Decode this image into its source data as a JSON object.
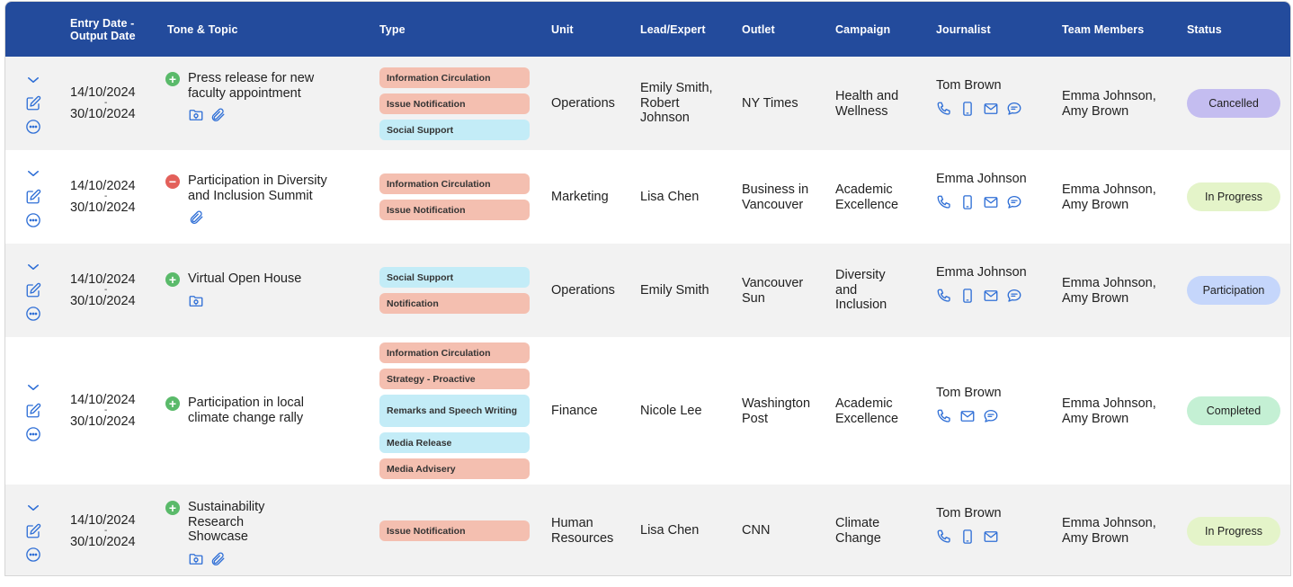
{
  "columns": {
    "entry_date_line1": "Entry Date -",
    "entry_date_line2": "Output Date",
    "tone_topic": "Tone & Topic",
    "type": "Type",
    "unit": "Unit",
    "lead": "Lead/Expert",
    "outlet": "Outlet",
    "campaign": "Campaign",
    "journalist": "Journalist",
    "team": "Team Members",
    "status": "Status"
  },
  "colors": {
    "header_bg": "#234b9c",
    "chip_salmon": "#f4bfb0",
    "chip_cyan": "#c3ecf7",
    "status_cancelled": "#c4bdf0",
    "status_in_progress": "#e4f4c9",
    "status_participation": "#c5d6fb",
    "status_completed": "#c4f0d4",
    "tone_positive": "#5aba6a",
    "tone_negative": "#e3605a",
    "icon_blue": "#2f6fd6"
  },
  "rows": [
    {
      "entry": "14/10/2024",
      "dash": "-",
      "output": "30/10/2024",
      "tone": "positive",
      "tone_symbol": "+",
      "topic": "Press release for new faculty appointment",
      "attachments": [
        "folder-icon",
        "paperclip-icon"
      ],
      "types": [
        {
          "label": "Information Circulation",
          "color": "salmon"
        },
        {
          "label": "Issue Notification",
          "color": "salmon"
        },
        {
          "label": "Social Support",
          "color": "cyan"
        }
      ],
      "unit": "Operations",
      "lead": "Emily Smith, Robert Johnson",
      "outlet": "NY Times",
      "campaign": "Health and Wellness",
      "journalist": "Tom Brown",
      "contact_icons": [
        "phone-icon",
        "mobile-icon",
        "email-icon",
        "chat-icon"
      ],
      "team": "Emma Johnson, Amy Brown",
      "status": "Cancelled",
      "status_color": "#c4bdf0"
    },
    {
      "entry": "14/10/2024",
      "dash": "-",
      "output": "30/10/2024",
      "tone": "negative",
      "tone_symbol": "−",
      "topic": "Participation in Diversity and Inclusion Summit",
      "attachments": [
        "paperclip-icon"
      ],
      "types": [
        {
          "label": "Information Circulation",
          "color": "salmon"
        },
        {
          "label": "Issue Notification",
          "color": "salmon"
        }
      ],
      "unit": "Marketing",
      "lead": "Lisa Chen",
      "outlet": "Business in Vancouver",
      "campaign": "Academic Excellence",
      "journalist": "Emma Johnson",
      "contact_icons": [
        "phone-icon",
        "mobile-icon",
        "email-icon",
        "chat-icon"
      ],
      "team": "Emma Johnson, Amy Brown",
      "status": "In Progress",
      "status_color": "#e4f4c9"
    },
    {
      "entry": "14/10/2024",
      "dash": "-",
      "output": "30/10/2024",
      "tone": "positive",
      "tone_symbol": "+",
      "topic": "Virtual Open House",
      "attachments": [
        "folder-icon"
      ],
      "types": [
        {
          "label": "Social Support",
          "color": "cyan"
        },
        {
          "label": "Notification",
          "color": "salmon"
        }
      ],
      "unit": "Operations",
      "lead": "Emily Smith",
      "outlet": "Vancouver Sun",
      "campaign": "Diversity and Inclusion",
      "journalist": "Emma Johnson",
      "contact_icons": [
        "phone-icon",
        "mobile-icon",
        "email-icon",
        "chat-icon"
      ],
      "team": "Emma Johnson, Amy Brown",
      "status": "Participation",
      "status_color": "#c5d6fb"
    },
    {
      "entry": "14/10/2024",
      "dash": "-",
      "output": "30/10/2024",
      "tone": "positive",
      "tone_symbol": "+",
      "topic": "Participation in local climate change rally",
      "attachments": [],
      "types": [
        {
          "label": "Information Circulation",
          "color": "salmon"
        },
        {
          "label": "Strategy - Proactive",
          "color": "salmon"
        },
        {
          "label": "Remarks and Speech Writing",
          "color": "cyan"
        },
        {
          "label": "Media Release",
          "color": "cyan"
        },
        {
          "label": "Media Advisery",
          "color": "salmon"
        }
      ],
      "unit": "Finance",
      "lead": "Nicole Lee",
      "outlet": "Washington Post",
      "campaign": "Academic Excellence",
      "journalist": "Tom Brown",
      "contact_icons": [
        "phone-icon",
        "email-icon",
        "chat-icon"
      ],
      "team": "Emma Johnson, Amy Brown",
      "status": "Completed",
      "status_color": "#c4f0d4"
    },
    {
      "entry": "14/10/2024",
      "dash": "-",
      "output": "30/10/2024",
      "tone": "positive",
      "tone_symbol": "+",
      "topic": "Sustainability Research Showcase",
      "attachments": [
        "folder-icon",
        "paperclip-icon"
      ],
      "types": [
        {
          "label": "Issue Notification",
          "color": "salmon"
        }
      ],
      "unit": "Human Resources",
      "lead": "Lisa Chen",
      "outlet": "CNN",
      "campaign": "Climate Change",
      "journalist": "Tom Brown",
      "contact_icons": [
        "phone-icon",
        "mobile-icon",
        "email-icon"
      ],
      "team": "Emma Johnson, Amy Brown",
      "status": "In Progress",
      "status_color": "#e4f4c9"
    }
  ]
}
